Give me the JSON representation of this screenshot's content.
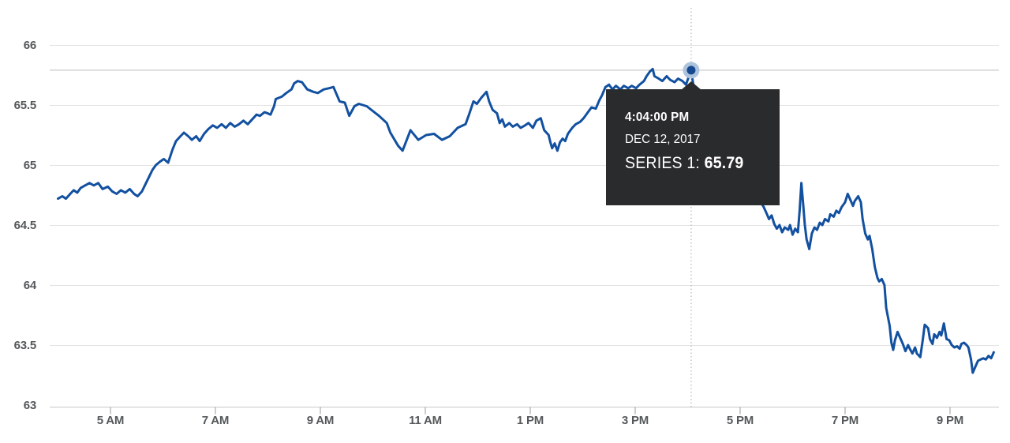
{
  "tooltip": {
    "time": "4:04:00 PM",
    "date": "DEC 12, 2017",
    "series_label": "SERIES 1:",
    "value": "65.79"
  },
  "colors": {
    "line": "#1250a0",
    "point": "#16498f",
    "point_halo": "#aec4dd",
    "grid": "#e3e3e3",
    "axis_line": "#c8c8c8",
    "tick": "#9b9b9b",
    "label": "#55585a",
    "crosshair_h": "#bdbdbd",
    "crosshair_v": "#a5a5a5",
    "tooltip_bg": "#2a2b2d"
  },
  "chart_data": {
    "type": "line",
    "title": "",
    "xlabel": "",
    "ylabel": "",
    "grid": "horizontal",
    "y_axis": {
      "ticks": [
        66,
        65.5,
        65,
        64.5,
        64,
        63.5,
        63
      ],
      "tick_labels": [
        "66",
        "65.5",
        "65",
        "64.5",
        "64",
        "63.5",
        "63"
      ],
      "range": [
        63,
        66
      ]
    },
    "x_axis": {
      "tick_labels": [
        "5 AM",
        "7 AM",
        "9 AM",
        "11 AM",
        "1 PM",
        "3 PM",
        "5 PM",
        "7 PM",
        "9 PM"
      ],
      "tick_hours": [
        5,
        7,
        9,
        11,
        13,
        15,
        17,
        19,
        21
      ],
      "start": "4:00",
      "end": "21:50"
    },
    "highlight": {
      "time": "16:04",
      "value": 65.79,
      "crosshair": true
    },
    "series": [
      {
        "name": "SERIES 1",
        "points": [
          [
            "4:00",
            64.72
          ],
          [
            "4:05",
            64.74
          ],
          [
            "4:09",
            64.72
          ],
          [
            "4:14",
            64.76
          ],
          [
            "4:18",
            64.79
          ],
          [
            "4:22",
            64.77
          ],
          [
            "4:26",
            64.81
          ],
          [
            "4:31",
            64.83
          ],
          [
            "4:36",
            64.85
          ],
          [
            "4:41",
            64.83
          ],
          [
            "4:46",
            64.85
          ],
          [
            "4:51",
            64.8
          ],
          [
            "4:57",
            64.82
          ],
          [
            "5:02",
            64.78
          ],
          [
            "5:07",
            64.76
          ],
          [
            "5:12",
            64.79
          ],
          [
            "5:17",
            64.77
          ],
          [
            "5:22",
            64.8
          ],
          [
            "5:27",
            64.76
          ],
          [
            "5:31",
            64.74
          ],
          [
            "5:36",
            64.78
          ],
          [
            "5:40",
            64.84
          ],
          [
            "5:44",
            64.9
          ],
          [
            "5:48",
            64.96
          ],
          [
            "5:52",
            65.0
          ],
          [
            "5:57",
            65.03
          ],
          [
            "6:01",
            65.05
          ],
          [
            "6:06",
            65.02
          ],
          [
            "6:11",
            65.13
          ],
          [
            "6:15",
            65.2
          ],
          [
            "6:20",
            65.24
          ],
          [
            "6:24",
            65.27
          ],
          [
            "6:29",
            65.24
          ],
          [
            "6:33",
            65.21
          ],
          [
            "6:38",
            65.24
          ],
          [
            "6:42",
            65.2
          ],
          [
            "6:47",
            65.26
          ],
          [
            "6:52",
            65.3
          ],
          [
            "6:57",
            65.33
          ],
          [
            "7:02",
            65.31
          ],
          [
            "7:07",
            65.34
          ],
          [
            "7:12",
            65.31
          ],
          [
            "7:17",
            65.35
          ],
          [
            "7:22",
            65.32
          ],
          [
            "7:27",
            65.34
          ],
          [
            "7:32",
            65.37
          ],
          [
            "7:37",
            65.34
          ],
          [
            "7:42",
            65.38
          ],
          [
            "7:47",
            65.42
          ],
          [
            "7:51",
            65.41
          ],
          [
            "7:56",
            65.44
          ],
          [
            "8:00",
            65.43
          ],
          [
            "8:03",
            65.42
          ],
          [
            "8:07",
            65.49
          ],
          [
            "8:09",
            65.55
          ],
          [
            "8:16",
            65.57
          ],
          [
            "8:21",
            65.6
          ],
          [
            "8:27",
            65.63
          ],
          [
            "8:30",
            65.68
          ],
          [
            "8:34",
            65.7
          ],
          [
            "8:39",
            65.69
          ],
          [
            "8:45",
            65.63
          ],
          [
            "8:52",
            65.61
          ],
          [
            "8:57",
            65.6
          ],
          [
            "9:04",
            65.63
          ],
          [
            "9:10",
            65.64
          ],
          [
            "9:15",
            65.65
          ],
          [
            "9:22",
            65.53
          ],
          [
            "9:28",
            65.52
          ],
          [
            "9:33",
            65.41
          ],
          [
            "9:39",
            65.49
          ],
          [
            "9:44",
            65.51
          ],
          [
            "9:53",
            65.49
          ],
          [
            "10:07",
            65.41
          ],
          [
            "10:16",
            65.35
          ],
          [
            "10:20",
            65.27
          ],
          [
            "10:29",
            65.16
          ],
          [
            "10:34",
            65.12
          ],
          [
            "10:43",
            65.29
          ],
          [
            "10:52",
            65.21
          ],
          [
            "11:01",
            65.25
          ],
          [
            "11:10",
            65.26
          ],
          [
            "11:19",
            65.21
          ],
          [
            "11:28",
            65.24
          ],
          [
            "11:37",
            65.31
          ],
          [
            "11:46",
            65.34
          ],
          [
            "11:50",
            65.42
          ],
          [
            "11:55",
            65.53
          ],
          [
            "11:59",
            65.51
          ],
          [
            "12:04",
            65.56
          ],
          [
            "12:10",
            65.61
          ],
          [
            "12:13",
            65.53
          ],
          [
            "12:17",
            65.46
          ],
          [
            "12:22",
            65.43
          ],
          [
            "12:25",
            65.35
          ],
          [
            "12:28",
            65.38
          ],
          [
            "12:31",
            65.32
          ],
          [
            "12:36",
            65.35
          ],
          [
            "12:40",
            65.32
          ],
          [
            "12:45",
            65.34
          ],
          [
            "12:49",
            65.31
          ],
          [
            "12:54",
            65.33
          ],
          [
            "12:58",
            65.35
          ],
          [
            "13:03",
            65.31
          ],
          [
            "13:07",
            65.37
          ],
          [
            "13:12",
            65.39
          ],
          [
            "13:16",
            65.29
          ],
          [
            "13:21",
            65.25
          ],
          [
            "13:23",
            65.19
          ],
          [
            "13:25",
            65.14
          ],
          [
            "13:28",
            65.18
          ],
          [
            "13:31",
            65.12
          ],
          [
            "13:34",
            65.19
          ],
          [
            "13:37",
            65.22
          ],
          [
            "13:40",
            65.2
          ],
          [
            "13:43",
            65.26
          ],
          [
            "13:48",
            65.31
          ],
          [
            "13:52",
            65.34
          ],
          [
            "13:57",
            65.36
          ],
          [
            "14:01",
            65.39
          ],
          [
            "14:06",
            65.44
          ],
          [
            "14:10",
            65.48
          ],
          [
            "14:15",
            65.47
          ],
          [
            "14:19",
            65.54
          ],
          [
            "14:22",
            65.58
          ],
          [
            "14:26",
            65.65
          ],
          [
            "14:30",
            65.67
          ],
          [
            "14:34",
            65.63
          ],
          [
            "14:38",
            65.66
          ],
          [
            "14:43",
            65.63
          ],
          [
            "14:47",
            65.66
          ],
          [
            "14:52",
            65.64
          ],
          [
            "14:56",
            65.66
          ],
          [
            "15:01",
            65.64
          ],
          [
            "15:05",
            65.67
          ],
          [
            "15:10",
            65.7
          ],
          [
            "15:13",
            65.74
          ],
          [
            "15:17",
            65.78
          ],
          [
            "15:20",
            65.8
          ],
          [
            "15:22",
            65.74
          ],
          [
            "15:27",
            65.72
          ],
          [
            "15:31",
            65.7
          ],
          [
            "15:36",
            65.74
          ],
          [
            "15:40",
            65.71
          ],
          [
            "15:45",
            65.69
          ],
          [
            "15:49",
            65.72
          ],
          [
            "15:54",
            65.7
          ],
          [
            "15:58",
            65.67
          ],
          [
            "16:04",
            65.79
          ],
          [
            "16:07",
            65.64
          ],
          [
            "17:27",
            64.65
          ],
          [
            "17:30",
            64.6
          ],
          [
            "17:33",
            64.55
          ],
          [
            "17:36",
            64.58
          ],
          [
            "17:39",
            64.51
          ],
          [
            "17:42",
            64.47
          ],
          [
            "17:45",
            64.5
          ],
          [
            "17:48",
            64.44
          ],
          [
            "17:51",
            64.48
          ],
          [
            "17:55",
            64.46
          ],
          [
            "17:57",
            64.5
          ],
          [
            "18:00",
            64.42
          ],
          [
            "18:03",
            64.47
          ],
          [
            "18:06",
            64.44
          ],
          [
            "18:08",
            64.62
          ],
          [
            "18:10",
            64.85
          ],
          [
            "18:12",
            64.68
          ],
          [
            "18:14",
            64.5
          ],
          [
            "18:16",
            64.38
          ],
          [
            "18:19",
            64.3
          ],
          [
            "18:22",
            64.43
          ],
          [
            "18:25",
            64.48
          ],
          [
            "18:28",
            64.46
          ],
          [
            "18:31",
            64.52
          ],
          [
            "18:34",
            64.5
          ],
          [
            "18:37",
            64.55
          ],
          [
            "18:41",
            64.53
          ],
          [
            "18:43",
            64.59
          ],
          [
            "18:47",
            64.57
          ],
          [
            "18:50",
            64.62
          ],
          [
            "18:53",
            64.6
          ],
          [
            "18:56",
            64.65
          ],
          [
            "19:00",
            64.69
          ],
          [
            "19:03",
            64.76
          ],
          [
            "19:06",
            64.71
          ],
          [
            "19:09",
            64.66
          ],
          [
            "19:11",
            64.7
          ],
          [
            "19:15",
            64.74
          ],
          [
            "19:18",
            64.69
          ],
          [
            "19:20",
            64.55
          ],
          [
            "19:23",
            64.43
          ],
          [
            "19:26",
            64.38
          ],
          [
            "19:28",
            64.41
          ],
          [
            "19:31",
            64.3
          ],
          [
            "19:34",
            64.15
          ],
          [
            "19:37",
            64.06
          ],
          [
            "19:39",
            64.03
          ],
          [
            "19:42",
            64.05
          ],
          [
            "19:45",
            64.0
          ],
          [
            "19:47",
            63.81
          ],
          [
            "19:51",
            63.66
          ],
          [
            "19:53",
            63.52
          ],
          [
            "19:55",
            63.46
          ],
          [
            "19:57",
            63.54
          ],
          [
            "20:00",
            63.61
          ],
          [
            "20:03",
            63.56
          ],
          [
            "20:06",
            63.51
          ],
          [
            "20:09",
            63.45
          ],
          [
            "20:12",
            63.5
          ],
          [
            "20:14",
            63.47
          ],
          [
            "20:17",
            63.43
          ],
          [
            "20:20",
            63.48
          ],
          [
            "20:22",
            63.43
          ],
          [
            "20:26",
            63.4
          ],
          [
            "20:29",
            63.55
          ],
          [
            "20:31",
            63.67
          ],
          [
            "20:35",
            63.64
          ],
          [
            "20:37",
            63.55
          ],
          [
            "20:40",
            63.51
          ],
          [
            "20:42",
            63.59
          ],
          [
            "20:45",
            63.56
          ],
          [
            "20:48",
            63.61
          ],
          [
            "20:50",
            63.58
          ],
          [
            "20:53",
            63.68
          ],
          [
            "20:56",
            63.55
          ],
          [
            "20:59",
            63.54
          ],
          [
            "21:02",
            63.5
          ],
          [
            "21:05",
            63.48
          ],
          [
            "21:08",
            63.49
          ],
          [
            "21:11",
            63.47
          ],
          [
            "21:13",
            63.51
          ],
          [
            "21:16",
            63.52
          ],
          [
            "21:19",
            63.5
          ],
          [
            "21:21",
            63.48
          ],
          [
            "21:24",
            63.38
          ],
          [
            "21:26",
            63.27
          ],
          [
            "21:29",
            63.32
          ],
          [
            "21:32",
            63.37
          ],
          [
            "21:35",
            63.38
          ],
          [
            "21:38",
            63.39
          ],
          [
            "21:41",
            63.38
          ],
          [
            "21:44",
            63.41
          ],
          [
            "21:47",
            63.39
          ],
          [
            "21:50",
            63.44
          ]
        ]
      }
    ]
  }
}
